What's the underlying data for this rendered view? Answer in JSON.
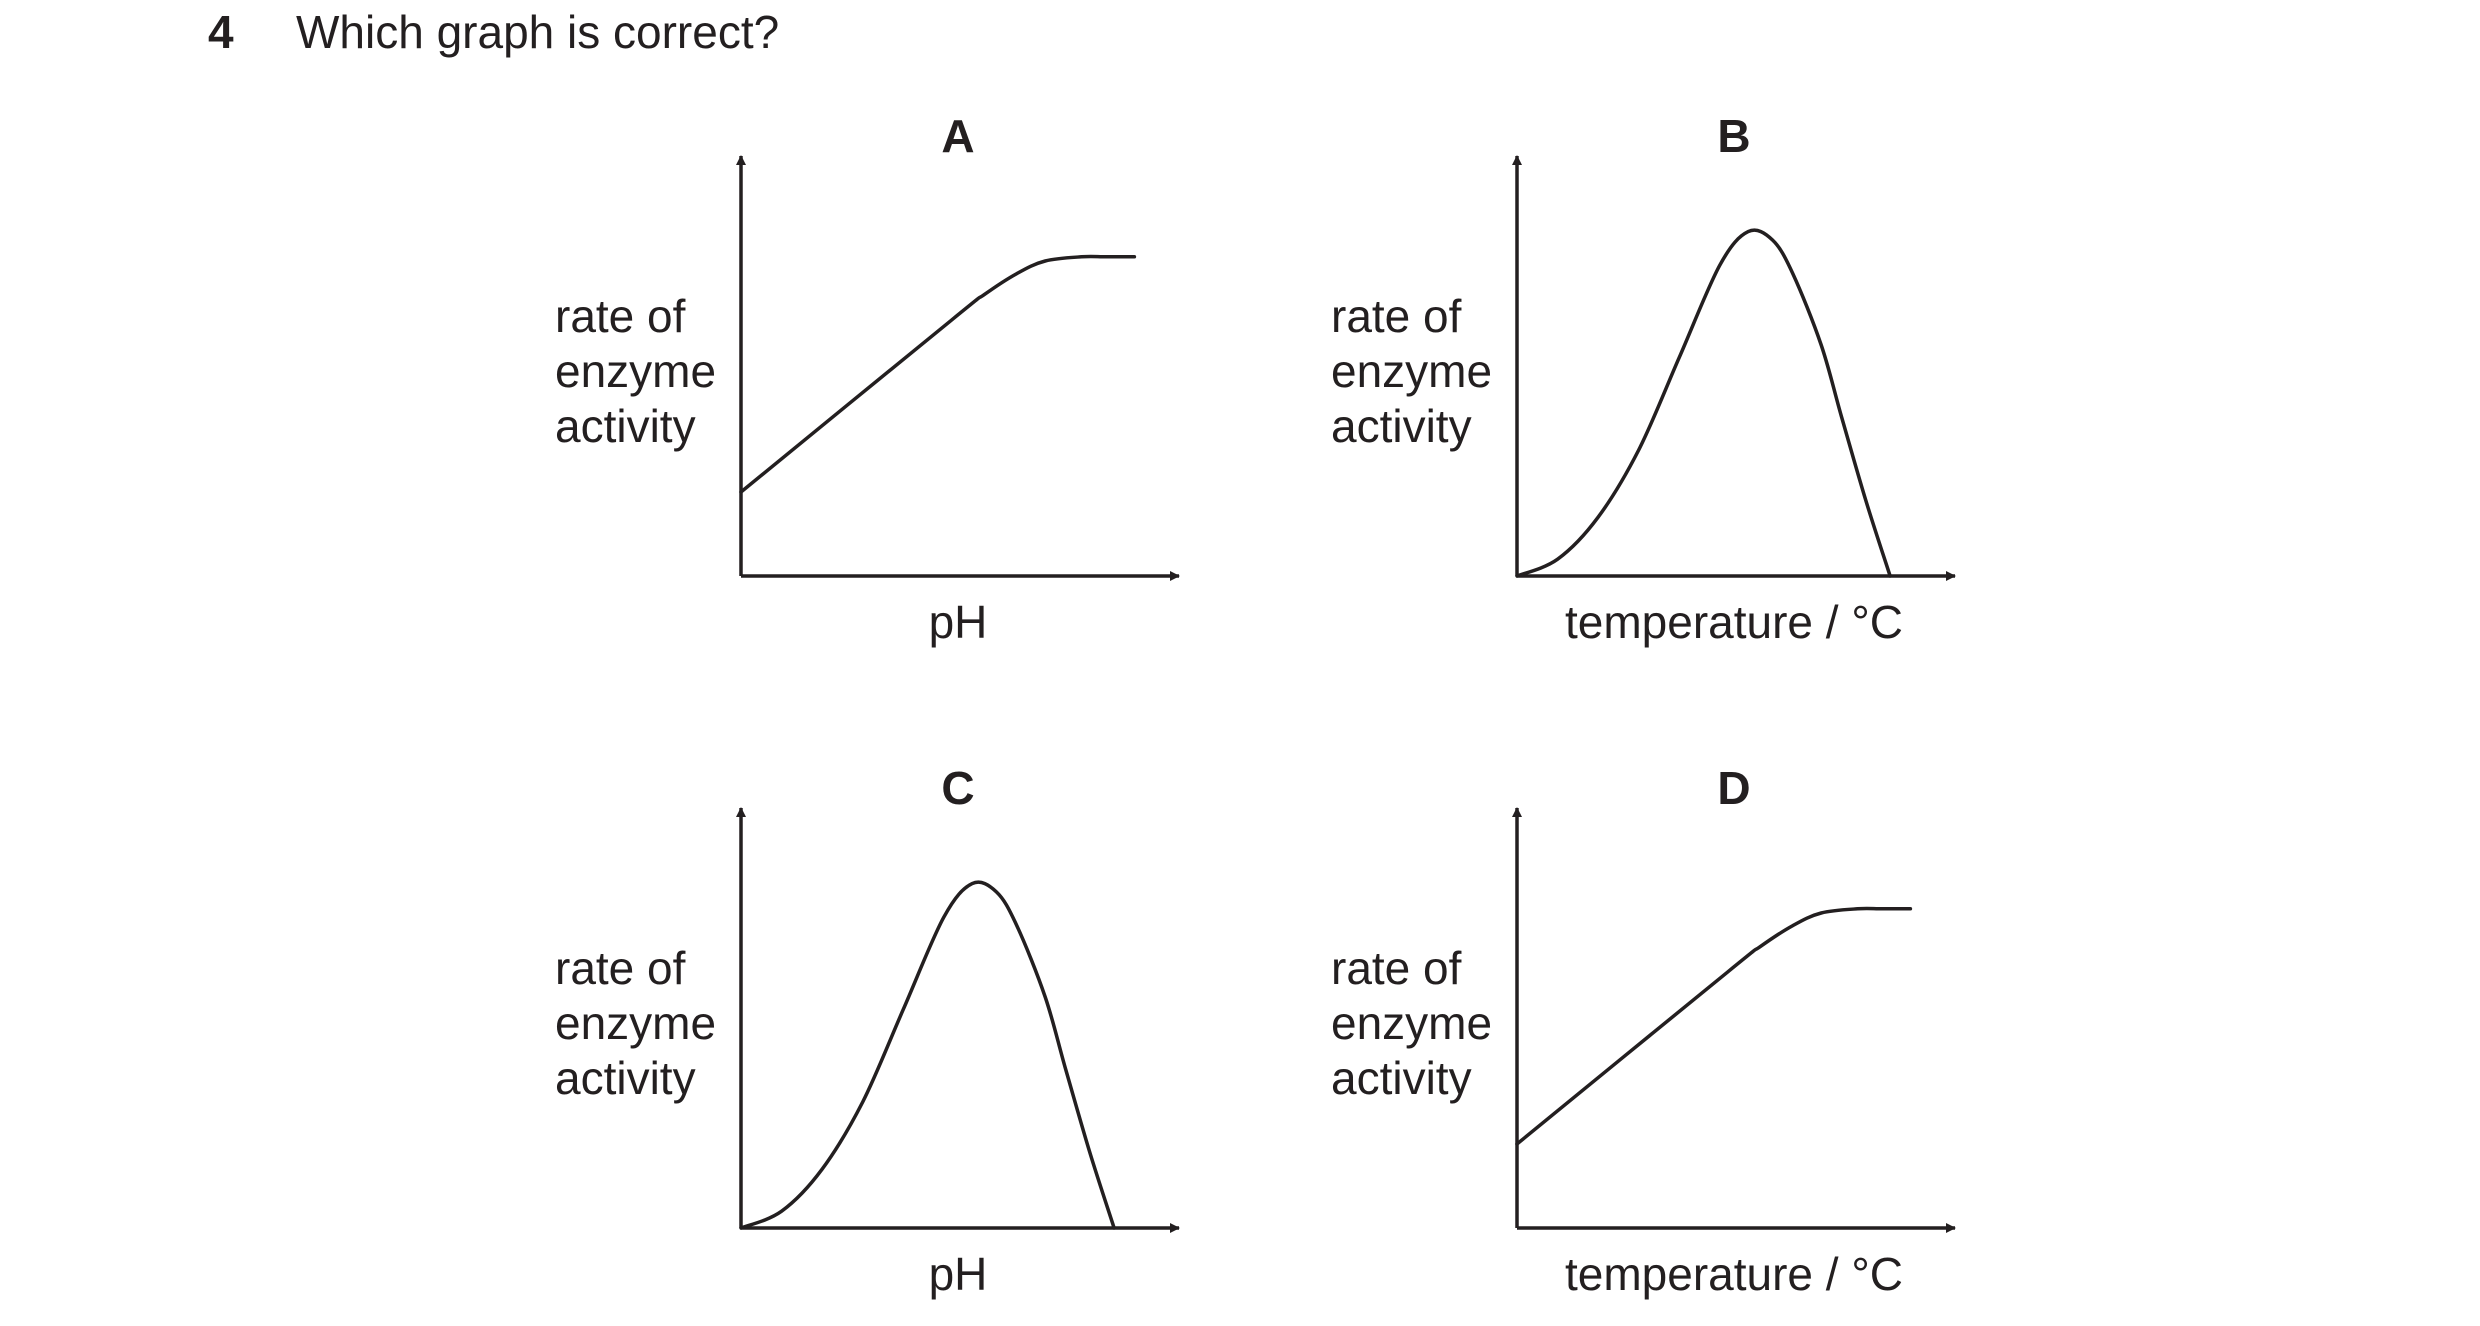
{
  "question": {
    "number": "4",
    "text": "Which graph is correct?"
  },
  "chart_data": [
    {
      "type": "line",
      "title": "A",
      "ylabel_lines": [
        "rate of",
        "enzyme",
        "activity"
      ],
      "xlabel": "pH",
      "shape": "linear-rise-then-plateau",
      "x": [
        0,
        0.52,
        0.6,
        0.68,
        0.75,
        0.84,
        0.9,
        0.97
      ],
      "y": [
        0.2,
        0.61,
        0.67,
        0.72,
        0.75,
        0.76,
        0.76,
        0.76
      ],
      "xlim": [
        0,
        1.08
      ],
      "ylim": [
        0,
        1
      ],
      "grid": false
    },
    {
      "type": "line",
      "title": "B",
      "ylabel_lines": [
        "rate of",
        "enzyme",
        "activity"
      ],
      "xlabel": "temperature / °C",
      "shape": "rise-to-peak-then-sharp-fall",
      "x": [
        0,
        0.1,
        0.2,
        0.3,
        0.4,
        0.5,
        0.57,
        0.63,
        0.68,
        0.75,
        0.8,
        0.86,
        0.92
      ],
      "y": [
        0,
        0.04,
        0.14,
        0.3,
        0.52,
        0.74,
        0.82,
        0.8,
        0.72,
        0.55,
        0.38,
        0.18,
        0
      ],
      "xlim": [
        0,
        1.08
      ],
      "ylim": [
        0,
        1
      ],
      "grid": false
    },
    {
      "type": "line",
      "title": "C",
      "ylabel_lines": [
        "rate of",
        "enzyme",
        "activity"
      ],
      "xlabel": "pH",
      "shape": "rise-to-peak-then-sharp-fall",
      "x": [
        0,
        0.1,
        0.2,
        0.3,
        0.4,
        0.5,
        0.57,
        0.63,
        0.68,
        0.75,
        0.8,
        0.86,
        0.92
      ],
      "y": [
        0,
        0.04,
        0.14,
        0.3,
        0.52,
        0.74,
        0.82,
        0.8,
        0.72,
        0.55,
        0.38,
        0.18,
        0
      ],
      "xlim": [
        0,
        1.08
      ],
      "ylim": [
        0,
        1
      ],
      "grid": false
    },
    {
      "type": "line",
      "title": "D",
      "ylabel_lines": [
        "rate of",
        "enzyme",
        "activity"
      ],
      "xlabel": "temperature / °C",
      "shape": "linear-rise-then-plateau",
      "x": [
        0,
        0.52,
        0.6,
        0.68,
        0.75,
        0.84,
        0.9,
        0.97
      ],
      "y": [
        0.2,
        0.61,
        0.67,
        0.72,
        0.75,
        0.76,
        0.76,
        0.76
      ],
      "xlim": [
        0,
        1.08
      ],
      "ylim": [
        0,
        1
      ],
      "grid": false
    }
  ],
  "colors": {
    "ink": "#231f20",
    "background": "#ffffff"
  }
}
